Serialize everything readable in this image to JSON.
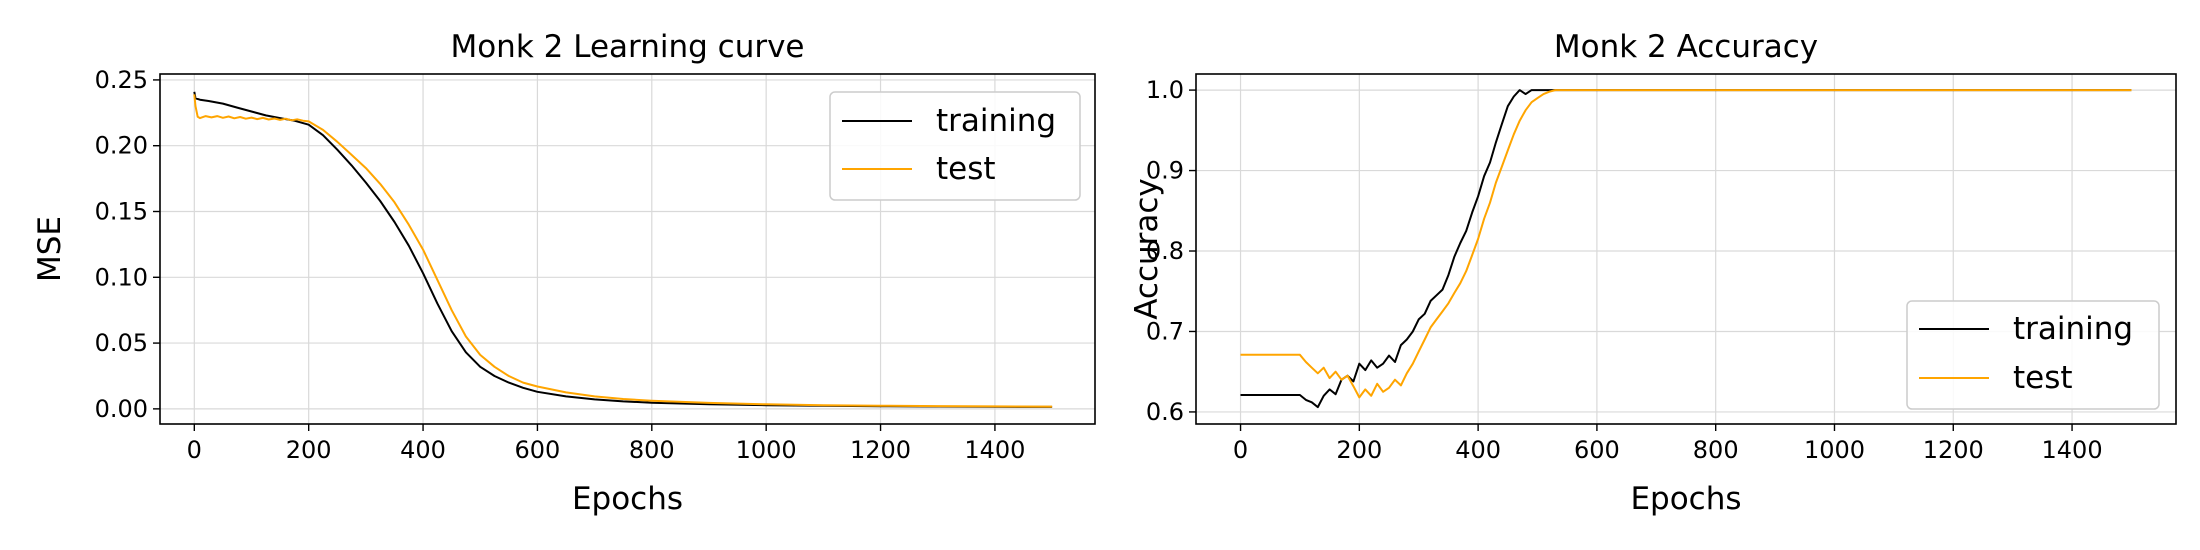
{
  "chart_data": [
    {
      "type": "line",
      "title": "Monk 2 Learning curve",
      "xlabel": "Epochs",
      "ylabel": "MSE",
      "xlim": [
        -60,
        1575
      ],
      "ylim": [
        -0.0115,
        0.2545
      ],
      "xticks": [
        0,
        200,
        400,
        600,
        800,
        1000,
        1200,
        1400
      ],
      "yticks": [
        0.0,
        0.05,
        0.1,
        0.15,
        0.2,
        0.25
      ],
      "xtick_labels": [
        "0",
        "200",
        "400",
        "600",
        "800",
        "1000",
        "1200",
        "1400"
      ],
      "ytick_labels": [
        "0.00",
        "0.05",
        "0.10",
        "0.15",
        "0.20",
        "0.25"
      ],
      "grid": true,
      "legend_position": "top-right",
      "series": [
        {
          "name": "training",
          "color": "#000000",
          "x": [
            0,
            2,
            10,
            25,
            50,
            75,
            100,
            125,
            150,
            175,
            200,
            225,
            250,
            275,
            300,
            325,
            350,
            375,
            400,
            425,
            450,
            475,
            500,
            525,
            550,
            575,
            600,
            650,
            700,
            750,
            800,
            900,
            1000,
            1100,
            1200,
            1300,
            1400,
            1500
          ],
          "y": [
            0.241,
            0.236,
            0.235,
            0.234,
            0.232,
            0.229,
            0.226,
            0.223,
            0.221,
            0.219,
            0.216,
            0.208,
            0.197,
            0.185,
            0.172,
            0.158,
            0.142,
            0.124,
            0.103,
            0.08,
            0.059,
            0.043,
            0.032,
            0.025,
            0.02,
            0.016,
            0.013,
            0.0095,
            0.0072,
            0.0057,
            0.0047,
            0.0035,
            0.0028,
            0.0023,
            0.002,
            0.0018,
            0.0016,
            0.0015
          ]
        },
        {
          "name": "test",
          "color": "#FFA500",
          "x": [
            0,
            2,
            6,
            10,
            20,
            30,
            40,
            50,
            60,
            70,
            80,
            90,
            100,
            110,
            120,
            130,
            140,
            150,
            160,
            170,
            180,
            190,
            200,
            225,
            250,
            275,
            300,
            325,
            350,
            375,
            400,
            425,
            450,
            475,
            500,
            525,
            550,
            575,
            600,
            650,
            700,
            750,
            800,
            900,
            1000,
            1100,
            1200,
            1300,
            1400,
            1500
          ],
          "y": [
            0.239,
            0.23,
            0.222,
            0.221,
            0.2225,
            0.2215,
            0.2225,
            0.2212,
            0.2222,
            0.2208,
            0.2218,
            0.2205,
            0.2214,
            0.2202,
            0.2211,
            0.2199,
            0.2207,
            0.2196,
            0.2205,
            0.2193,
            0.2201,
            0.219,
            0.2185,
            0.212,
            0.203,
            0.193,
            0.183,
            0.171,
            0.157,
            0.14,
            0.121,
            0.098,
            0.075,
            0.055,
            0.041,
            0.032,
            0.025,
            0.02,
            0.017,
            0.0125,
            0.0095,
            0.0075,
            0.0062,
            0.0045,
            0.0035,
            0.0028,
            0.0024,
            0.0021,
            0.0019,
            0.0017
          ]
        }
      ]
    },
    {
      "type": "line",
      "title": "Monk 2 Accuracy",
      "xlabel": "Epochs",
      "ylabel": "Accuracy",
      "xlim": [
        -75,
        1575
      ],
      "ylim": [
        0.585,
        1.02
      ],
      "xticks": [
        0,
        200,
        400,
        600,
        800,
        1000,
        1200,
        1400
      ],
      "yticks": [
        0.6,
        0.7,
        0.8,
        0.9,
        1.0
      ],
      "xtick_labels": [
        "0",
        "200",
        "400",
        "600",
        "800",
        "1000",
        "1200",
        "1400"
      ],
      "ytick_labels": [
        "0.6",
        "0.7",
        "0.8",
        "0.9",
        "1.0"
      ],
      "grid": true,
      "legend_position": "bottom-right",
      "series": [
        {
          "name": "training",
          "color": "#000000",
          "x": [
            0,
            100,
            110,
            120,
            130,
            140,
            150,
            160,
            170,
            180,
            190,
            200,
            210,
            220,
            230,
            240,
            250,
            260,
            270,
            280,
            290,
            300,
            310,
            320,
            330,
            340,
            350,
            360,
            370,
            380,
            390,
            400,
            410,
            420,
            430,
            440,
            450,
            460,
            470,
            480,
            490,
            500,
            530,
            1500
          ],
          "y": [
            0.621,
            0.621,
            0.615,
            0.612,
            0.606,
            0.62,
            0.628,
            0.622,
            0.64,
            0.645,
            0.638,
            0.66,
            0.652,
            0.664,
            0.655,
            0.66,
            0.67,
            0.662,
            0.683,
            0.69,
            0.7,
            0.715,
            0.722,
            0.738,
            0.745,
            0.752,
            0.77,
            0.793,
            0.81,
            0.825,
            0.848,
            0.868,
            0.893,
            0.91,
            0.935,
            0.958,
            0.98,
            0.992,
            1.0,
            0.995,
            1.0,
            1.0,
            1.0,
            1.0
          ]
        },
        {
          "name": "test",
          "color": "#FFA500",
          "x": [
            0,
            100,
            110,
            120,
            130,
            140,
            150,
            160,
            170,
            180,
            190,
            200,
            210,
            220,
            230,
            240,
            250,
            260,
            270,
            280,
            290,
            300,
            310,
            320,
            330,
            340,
            350,
            360,
            370,
            380,
            390,
            400,
            410,
            420,
            430,
            440,
            450,
            460,
            470,
            480,
            490,
            500,
            510,
            520,
            530,
            1500
          ],
          "y": [
            0.671,
            0.671,
            0.662,
            0.655,
            0.648,
            0.655,
            0.642,
            0.65,
            0.64,
            0.645,
            0.632,
            0.618,
            0.628,
            0.62,
            0.635,
            0.625,
            0.63,
            0.64,
            0.633,
            0.648,
            0.66,
            0.675,
            0.69,
            0.705,
            0.715,
            0.725,
            0.735,
            0.748,
            0.76,
            0.775,
            0.795,
            0.815,
            0.84,
            0.86,
            0.885,
            0.905,
            0.925,
            0.945,
            0.962,
            0.975,
            0.985,
            0.99,
            0.995,
            0.998,
            1.0,
            1.0
          ]
        }
      ]
    }
  ]
}
